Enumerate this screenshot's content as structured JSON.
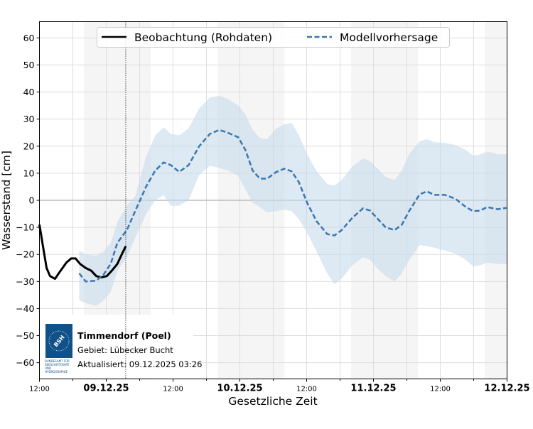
{
  "chart_data": {
    "type": "line",
    "xlabel": "Gesetzliche Zeit",
    "ylabel": "Wasserstand [cm]",
    "xlim": [
      "2025-12-08T12:00",
      "2025-12-12T00:00"
    ],
    "ylim": [
      -66,
      66
    ],
    "grid": true,
    "legend_placement": "top-center",
    "x_ticks": [
      {
        "t": "2025-12-08T12:00",
        "label": "12:00",
        "bold": false
      },
      {
        "t": "2025-12-09T00:00",
        "label": "09.12.25",
        "bold": true
      },
      {
        "t": "2025-12-09T12:00",
        "label": "12:00",
        "bold": false
      },
      {
        "t": "2025-12-10T00:00",
        "label": "10.12.25",
        "bold": true
      },
      {
        "t": "2025-12-10T12:00",
        "label": "12:00",
        "bold": false
      },
      {
        "t": "2025-12-11T00:00",
        "label": "11.12.25",
        "bold": true
      },
      {
        "t": "2025-12-11T12:00",
        "label": "12:00",
        "bold": false
      },
      {
        "t": "2025-12-12T00:00",
        "label": "12.12.25",
        "bold": true
      }
    ],
    "y_ticks": [
      -60,
      -50,
      -40,
      -30,
      -20,
      -10,
      0,
      10,
      20,
      30,
      40,
      50,
      60
    ],
    "shaded_periods": [
      [
        "2025-12-08T20:00",
        "2025-12-09T08:00"
      ],
      [
        "2025-12-09T20:00",
        "2025-12-10T08:00"
      ],
      [
        "2025-12-10T20:00",
        "2025-12-11T08:00"
      ],
      [
        "2025-12-11T20:00",
        "2025-12-12T00:00"
      ]
    ],
    "current_time": "2025-12-09T03:30",
    "series": [
      {
        "name": "Beobachtung (Rohdaten)",
        "color": "#000000",
        "style": "solid",
        "points": [
          [
            "2025-12-08T12:00",
            -9
          ],
          [
            "2025-12-08T12:38",
            -17
          ],
          [
            "2025-12-08T13:17",
            -25
          ],
          [
            "2025-12-08T13:54",
            -28
          ],
          [
            "2025-12-08T14:48",
            -29
          ],
          [
            "2025-12-08T15:48",
            -26
          ],
          [
            "2025-12-08T16:51",
            -23
          ],
          [
            "2025-12-08T17:42",
            -21.5
          ],
          [
            "2025-12-08T18:30",
            -21.5
          ],
          [
            "2025-12-08T19:18",
            -23.5
          ],
          [
            "2025-12-08T20:18",
            -25
          ],
          [
            "2025-12-08T21:18",
            -26
          ],
          [
            "2025-12-08T22:12",
            -28
          ],
          [
            "2025-12-08T23:06",
            -28.5
          ],
          [
            "2025-12-09T00:06",
            -28
          ],
          [
            "2025-12-09T01:00",
            -26
          ],
          [
            "2025-12-09T02:00",
            -23.5
          ],
          [
            "2025-12-09T02:54",
            -19.5
          ],
          [
            "2025-12-09T03:30",
            -17
          ]
        ]
      },
      {
        "name": "Modellvorhersage",
        "color": "#3a76b0",
        "band_color": "#c6dbeb",
        "style": "dashed",
        "points_time_value_lower_upper": [
          [
            "2025-12-08T19:09",
            -27,
            -37,
            -18.6
          ],
          [
            "2025-12-08T20:18",
            -30,
            -38,
            -20
          ],
          [
            "2025-12-08T22:12",
            -29.7,
            -39,
            -20.5
          ],
          [
            "2025-12-08T23:30",
            -27.5,
            -37,
            -19
          ],
          [
            "2025-12-09T00:48",
            -23.5,
            -34,
            -15.7
          ],
          [
            "2025-12-09T02:00",
            -15.7,
            -26,
            -8
          ],
          [
            "2025-12-09T03:42",
            -11,
            -21,
            -2
          ],
          [
            "2025-12-09T05:12",
            -4,
            -14,
            1.5
          ],
          [
            "2025-12-09T07:09",
            5,
            -5,
            16
          ],
          [
            "2025-12-09T08:48",
            11,
            0,
            24
          ],
          [
            "2025-12-09T10:18",
            14,
            2,
            27
          ],
          [
            "2025-12-09T11:36",
            13,
            -2,
            24.5
          ],
          [
            "2025-12-09T13:06",
            10.5,
            -2,
            24
          ],
          [
            "2025-12-09T14:48",
            13,
            0,
            26.5
          ],
          [
            "2025-12-09T16:42",
            20,
            9.4,
            34
          ],
          [
            "2025-12-09T18:36",
            24.5,
            12.8,
            38
          ],
          [
            "2025-12-09T20:18",
            26,
            12,
            38.6
          ],
          [
            "2025-12-09T21:48",
            25,
            11,
            37.5
          ],
          [
            "2025-12-09T23:42",
            23.3,
            9,
            35
          ],
          [
            "2025-12-10T01:00",
            18.6,
            4,
            31.8
          ],
          [
            "2025-12-10T02:18",
            11,
            -1,
            26
          ],
          [
            "2025-12-10T03:36",
            8,
            -2.5,
            23
          ],
          [
            "2025-12-10T04:54",
            8,
            -4.5,
            22.6
          ],
          [
            "2025-12-10T06:30",
            10.4,
            -4,
            26.5
          ],
          [
            "2025-12-10T08:00",
            11.7,
            -3.5,
            28
          ],
          [
            "2025-12-10T09:18",
            10.7,
            -4,
            28.6
          ],
          [
            "2025-12-10T10:36",
            6.7,
            -7,
            24
          ],
          [
            "2025-12-10T12:06",
            -1,
            -12,
            17
          ],
          [
            "2025-12-10T13:48",
            -7.8,
            -19,
            10.7
          ],
          [
            "2025-12-10T15:42",
            -12.5,
            -27,
            6
          ],
          [
            "2025-12-10T17:00",
            -13,
            -31,
            5.4
          ],
          [
            "2025-12-10T18:18",
            -11,
            -29,
            7.5
          ],
          [
            "2025-12-10T20:12",
            -6.5,
            -24,
            12.5
          ],
          [
            "2025-12-10T22:06",
            -3,
            -21,
            15.4
          ],
          [
            "2025-12-10T23:24",
            -3.8,
            -22,
            14.5
          ],
          [
            "2025-12-11T00:36",
            -6.5,
            -25,
            12
          ],
          [
            "2025-12-11T02:12",
            -10,
            -28,
            8.6
          ],
          [
            "2025-12-11T03:48",
            -11,
            -30,
            7.5
          ],
          [
            "2025-12-11T05:06",
            -9,
            -27,
            11
          ],
          [
            "2025-12-11T06:24",
            -4,
            -22,
            17
          ],
          [
            "2025-12-11T08:18",
            2.2,
            -16.5,
            21.8
          ],
          [
            "2025-12-11T09:36",
            3.3,
            -17,
            22.6
          ],
          [
            "2025-12-11T10:54",
            2,
            -17.5,
            21.5
          ],
          [
            "2025-12-11T12:48",
            2,
            -18.5,
            21.2
          ],
          [
            "2025-12-11T14:42",
            0.6,
            -19.7,
            20.4
          ],
          [
            "2025-12-11T16:36",
            -2.5,
            -22,
            18.6
          ],
          [
            "2025-12-11T17:54",
            -4,
            -24.4,
            16.5
          ],
          [
            "2025-12-11T19:12",
            -3.8,
            -24,
            17
          ],
          [
            "2025-12-11T20:24",
            -2.5,
            -23,
            18
          ],
          [
            "2025-12-11T22:18",
            -3.3,
            -23.5,
            17
          ],
          [
            "2025-12-11T23:54",
            -2.8,
            -23.6,
            17
          ]
        ]
      }
    ]
  },
  "info_box": {
    "station": "Timmendorf (Poel)",
    "area": "Gebiet: Lübecker Bucht",
    "updated": "Aktualisiert: 09.12.2025 03:26",
    "logo_text": "BSH",
    "logo_caption": "BUNDESAMT FÜR SEESCHIFFFAHRT UND HYDROGRAPHIE",
    "logo_color": "#0f5188"
  }
}
